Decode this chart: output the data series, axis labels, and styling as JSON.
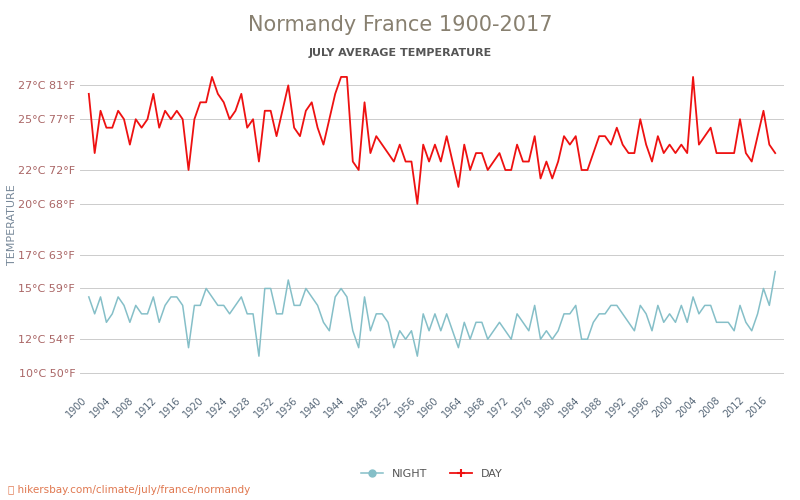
{
  "title": "Normandy France 1900-2017",
  "subtitle": "JULY AVERAGE TEMPERATURE",
  "ylabel": "TEMPERATURE",
  "watermark": "⭕ hikersbay.com/climate/july/france/normandy",
  "yticks_celsius": [
    10,
    12,
    15,
    17,
    20,
    22,
    25,
    27
  ],
  "yticks_fahrenheit": [
    50,
    54,
    59,
    63,
    68,
    72,
    77,
    81
  ],
  "ylim": [
    9.0,
    28.5
  ],
  "years": [
    1900,
    1901,
    1902,
    1903,
    1904,
    1905,
    1906,
    1907,
    1908,
    1909,
    1910,
    1911,
    1912,
    1913,
    1914,
    1915,
    1916,
    1917,
    1918,
    1919,
    1920,
    1921,
    1922,
    1923,
    1924,
    1925,
    1926,
    1927,
    1928,
    1929,
    1930,
    1931,
    1932,
    1933,
    1934,
    1935,
    1936,
    1937,
    1938,
    1939,
    1940,
    1941,
    1942,
    1943,
    1944,
    1945,
    1946,
    1947,
    1948,
    1949,
    1950,
    1951,
    1952,
    1953,
    1954,
    1955,
    1956,
    1957,
    1958,
    1959,
    1960,
    1961,
    1962,
    1963,
    1964,
    1965,
    1966,
    1967,
    1968,
    1969,
    1970,
    1971,
    1972,
    1973,
    1974,
    1975,
    1976,
    1977,
    1978,
    1979,
    1980,
    1981,
    1982,
    1983,
    1984,
    1985,
    1986,
    1987,
    1988,
    1989,
    1990,
    1991,
    1992,
    1993,
    1994,
    1995,
    1996,
    1997,
    1998,
    1999,
    2000,
    2001,
    2002,
    2003,
    2004,
    2005,
    2006,
    2007,
    2008,
    2009,
    2010,
    2011,
    2012,
    2013,
    2014,
    2015,
    2016,
    2017
  ],
  "day_temps": [
    26.5,
    23.0,
    25.5,
    24.5,
    24.5,
    25.5,
    25.0,
    23.5,
    25.0,
    24.5,
    25.0,
    26.5,
    24.5,
    25.5,
    25.0,
    25.5,
    25.0,
    22.0,
    25.0,
    26.0,
    26.0,
    27.5,
    26.5,
    26.0,
    25.0,
    25.5,
    26.5,
    24.5,
    25.0,
    22.5,
    25.5,
    25.5,
    24.0,
    25.5,
    27.0,
    24.5,
    24.0,
    25.5,
    26.0,
    24.5,
    23.5,
    25.0,
    26.5,
    27.5,
    27.5,
    22.5,
    22.0,
    26.0,
    23.0,
    24.0,
    23.5,
    23.0,
    22.5,
    23.5,
    22.5,
    22.5,
    20.0,
    23.5,
    22.5,
    23.5,
    22.5,
    24.0,
    22.5,
    21.0,
    23.5,
    22.0,
    23.0,
    23.0,
    22.0,
    22.5,
    23.0,
    22.0,
    22.0,
    23.5,
    22.5,
    22.5,
    24.0,
    21.5,
    22.5,
    21.5,
    22.5,
    24.0,
    23.5,
    24.0,
    22.0,
    22.0,
    23.0,
    24.0,
    24.0,
    23.5,
    24.5,
    23.5,
    23.0,
    23.0,
    25.0,
    23.5,
    22.5,
    24.0,
    23.0,
    23.5,
    23.0,
    23.5,
    23.0,
    27.5,
    23.5,
    24.0,
    24.5,
    23.0,
    23.0,
    23.0,
    23.0,
    25.0,
    23.0,
    22.5,
    24.0,
    25.5,
    23.5,
    23.0
  ],
  "night_temps": [
    14.5,
    13.5,
    14.5,
    13.0,
    13.5,
    14.5,
    14.0,
    13.0,
    14.0,
    13.5,
    13.5,
    14.5,
    13.0,
    14.0,
    14.5,
    14.5,
    14.0,
    11.5,
    14.0,
    14.0,
    15.0,
    14.5,
    14.0,
    14.0,
    13.5,
    14.0,
    14.5,
    13.5,
    13.5,
    11.0,
    15.0,
    15.0,
    13.5,
    13.5,
    15.5,
    14.0,
    14.0,
    15.0,
    14.5,
    14.0,
    13.0,
    12.5,
    14.5,
    15.0,
    14.5,
    12.5,
    11.5,
    14.5,
    12.5,
    13.5,
    13.5,
    13.0,
    11.5,
    12.5,
    12.0,
    12.5,
    11.0,
    13.5,
    12.5,
    13.5,
    12.5,
    13.5,
    12.5,
    11.5,
    13.0,
    12.0,
    13.0,
    13.0,
    12.0,
    12.5,
    13.0,
    12.5,
    12.0,
    13.5,
    13.0,
    12.5,
    14.0,
    12.0,
    12.5,
    12.0,
    12.5,
    13.5,
    13.5,
    14.0,
    12.0,
    12.0,
    13.0,
    13.5,
    13.5,
    14.0,
    14.0,
    13.5,
    13.0,
    12.5,
    14.0,
    13.5,
    12.5,
    14.0,
    13.0,
    13.5,
    13.0,
    14.0,
    13.0,
    14.5,
    13.5,
    14.0,
    14.0,
    13.0,
    13.0,
    13.0,
    12.5,
    14.0,
    13.0,
    12.5,
    13.5,
    15.0,
    14.0,
    16.0
  ],
  "day_color": "#ee1111",
  "night_color": "#85bfc8",
  "title_color": "#888070",
  "subtitle_color": "#555555",
  "tick_label_color": "#aa6666",
  "watermark_color": "#e07850",
  "background_color": "#ffffff",
  "grid_color": "#cccccc",
  "xtick_label_color": "#556677",
  "ylabel_color": "#778899",
  "title_fontsize": 15,
  "subtitle_fontsize": 8,
  "tick_fontsize": 8,
  "xtick_fontsize": 7,
  "legend_fontsize": 8
}
